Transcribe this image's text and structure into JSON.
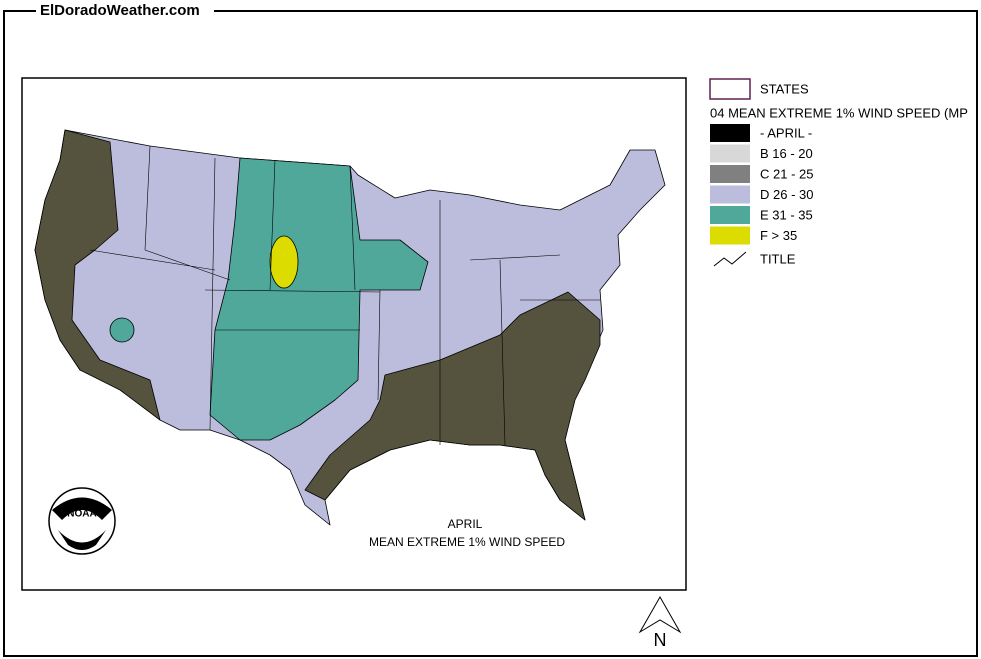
{
  "site": "ElDoradoWeather.com",
  "legend": {
    "states": "STATES",
    "heading": "04 MEAN EXTREME 1% WIND SPEED (MP",
    "items": [
      {
        "label": "- APRIL -",
        "color": "#000000"
      },
      {
        "label": "B 16 - 20",
        "color": "#d8d8d8"
      },
      {
        "label": "C 21 - 25",
        "color": "#808080"
      },
      {
        "label": "D 26 - 30",
        "color": "#bcbcdc"
      },
      {
        "label": "E 31 - 35",
        "color": "#4fa89a"
      },
      {
        "label": "F > 35",
        "color": "#dcdc00"
      }
    ],
    "title": "TITLE"
  },
  "map": {
    "caption_line1": "APRIL",
    "caption_line2": "MEAN EXTREME 1% WIND SPEED",
    "logo": "NOAA",
    "north": "N"
  }
}
